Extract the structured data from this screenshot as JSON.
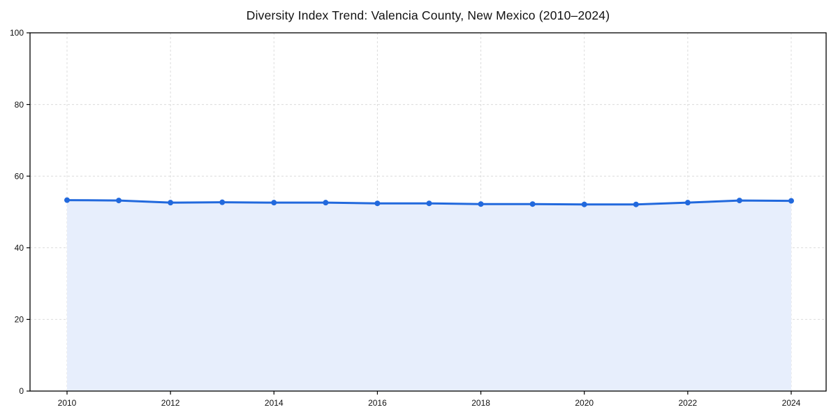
{
  "figure": {
    "background": "#ffffff"
  },
  "chart_data": {
    "type": "area",
    "title": "Diversity Index Trend: Valencia County, New Mexico (2010–2024)",
    "x": [
      2010,
      2011,
      2012,
      2013,
      2014,
      2015,
      2016,
      2017,
      2018,
      2019,
      2020,
      2021,
      2022,
      2023,
      2024
    ],
    "series": [
      {
        "name": "Diversity Index",
        "values": [
          53.3,
          53.2,
          52.6,
          52.7,
          52.6,
          52.6,
          52.4,
          52.4,
          52.2,
          52.2,
          52.1,
          52.1,
          52.6,
          53.2,
          53.1
        ]
      }
    ],
    "xlabel": "",
    "ylabel": "",
    "ylim": [
      0,
      100
    ],
    "xticks": [
      2010,
      2012,
      2014,
      2016,
      2018,
      2020,
      2022,
      2024
    ],
    "yticks": [
      0,
      20,
      40,
      60,
      80,
      100
    ],
    "grid": true,
    "grid_style": "dashed",
    "legend_position": "none",
    "marker": "circle",
    "style": {
      "line_color": "#2269dd",
      "marker_color": "#2269dd",
      "fill_color": "#e7eefc",
      "grid_color": "#dcdcdc",
      "spine_color": "#000000",
      "tick_color": "#000000",
      "tick_label_color": "#111111",
      "title_color": "#111111"
    }
  }
}
